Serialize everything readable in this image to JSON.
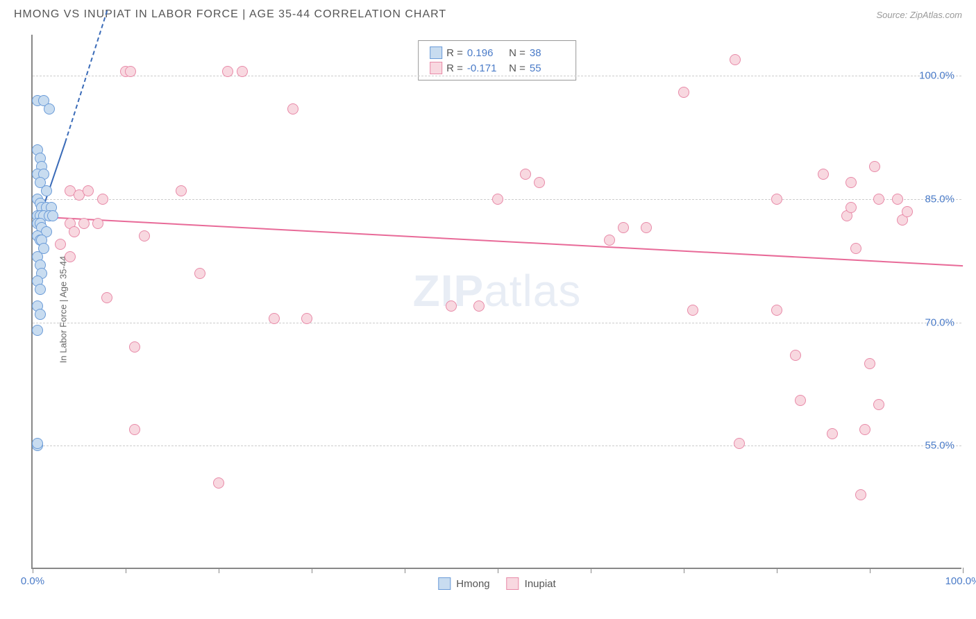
{
  "header": {
    "title": "HMONG VS INUPIAT IN LABOR FORCE | AGE 35-44 CORRELATION CHART",
    "source": "Source: ZipAtlas.com"
  },
  "chart": {
    "type": "scatter",
    "ylabel": "In Labor Force | Age 35-44",
    "xlim": [
      0,
      100
    ],
    "ylim": [
      40,
      105
    ],
    "yticks": [
      55.0,
      70.0,
      85.0,
      100.0
    ],
    "ytick_labels": [
      "55.0%",
      "70.0%",
      "85.0%",
      "100.0%"
    ],
    "xticks": [
      0,
      10,
      20,
      30,
      40,
      50,
      60,
      70,
      80,
      90,
      100
    ],
    "xtick_labels_shown": {
      "0": "0.0%",
      "100": "100.0%"
    },
    "background_color": "#ffffff",
    "grid_color": "#cccccc",
    "axis_color": "#888888",
    "watermark": "ZIPatlas",
    "series": [
      {
        "name": "Hmong",
        "color_fill": "#c8dcf0",
        "color_stroke": "#6a9bd8",
        "marker_size": 16,
        "R": "0.196",
        "N": "38",
        "trend": {
          "x1": 0.5,
          "y1": 82,
          "x2": 3.5,
          "y2": 92,
          "color": "#3a6bb8",
          "dash_extend_x2": 8,
          "dash_extend_y2": 108
        },
        "points": [
          [
            0.5,
            97
          ],
          [
            1.2,
            97
          ],
          [
            1.8,
            96
          ],
          [
            0.5,
            91
          ],
          [
            0.8,
            90
          ],
          [
            1.0,
            89
          ],
          [
            0.5,
            88
          ],
          [
            1.2,
            88
          ],
          [
            0.8,
            87
          ],
          [
            1.5,
            86
          ],
          [
            0.5,
            85
          ],
          [
            0.8,
            84.5
          ],
          [
            1.0,
            84
          ],
          [
            1.5,
            84
          ],
          [
            2.0,
            84
          ],
          [
            0.5,
            83
          ],
          [
            0.8,
            83
          ],
          [
            1.2,
            83
          ],
          [
            1.8,
            83
          ],
          [
            2.2,
            83
          ],
          [
            0.5,
            82
          ],
          [
            0.8,
            82
          ],
          [
            1.0,
            81.5
          ],
          [
            1.5,
            81
          ],
          [
            0.5,
            80.5
          ],
          [
            0.8,
            80
          ],
          [
            1.0,
            80
          ],
          [
            1.2,
            79
          ],
          [
            0.5,
            78
          ],
          [
            0.8,
            77
          ],
          [
            1.0,
            76
          ],
          [
            0.5,
            75
          ],
          [
            0.8,
            74
          ],
          [
            0.5,
            72
          ],
          [
            0.8,
            71
          ],
          [
            0.5,
            69
          ],
          [
            0.5,
            55
          ],
          [
            0.5,
            55.3
          ]
        ]
      },
      {
        "name": "Inupiat",
        "color_fill": "#f8d8e0",
        "color_stroke": "#e88aa8",
        "marker_size": 16,
        "R": "-0.171",
        "N": "55",
        "trend": {
          "x1": 0,
          "y1": 83,
          "x2": 100,
          "y2": 77,
          "color": "#e86a98"
        },
        "points": [
          [
            10,
            100.5
          ],
          [
            10.5,
            100.5
          ],
          [
            21,
            100.5
          ],
          [
            22.5,
            100.5
          ],
          [
            28,
            96
          ],
          [
            75.5,
            102
          ],
          [
            70,
            98
          ],
          [
            50,
            85
          ],
          [
            53,
            88
          ],
          [
            54.5,
            87
          ],
          [
            62,
            80
          ],
          [
            18,
            76
          ],
          [
            11,
            67
          ],
          [
            45,
            72
          ],
          [
            8,
            73
          ],
          [
            26,
            70.5
          ],
          [
            29.5,
            70.5
          ],
          [
            48,
            72
          ],
          [
            11,
            57
          ],
          [
            20,
            50.5
          ],
          [
            4,
            86
          ],
          [
            5,
            85.5
          ],
          [
            6,
            86
          ],
          [
            7.5,
            85
          ],
          [
            4,
            82
          ],
          [
            5.5,
            82
          ],
          [
            7,
            82
          ],
          [
            4.5,
            81
          ],
          [
            12,
            80.5
          ],
          [
            16,
            86
          ],
          [
            3,
            79.5
          ],
          [
            4,
            78
          ],
          [
            63.5,
            81.5
          ],
          [
            66,
            81.5
          ],
          [
            71,
            71.5
          ],
          [
            80,
            85
          ],
          [
            80,
            71.5
          ],
          [
            82,
            66
          ],
          [
            82.5,
            60.5
          ],
          [
            86,
            56.5
          ],
          [
            76,
            55.3
          ],
          [
            85,
            88
          ],
          [
            88,
            87
          ],
          [
            87.5,
            83
          ],
          [
            88,
            84
          ],
          [
            88.5,
            79
          ],
          [
            90,
            65
          ],
          [
            91,
            85
          ],
          [
            90.5,
            89
          ],
          [
            91,
            60
          ],
          [
            93,
            85
          ],
          [
            93.5,
            82.5
          ],
          [
            94,
            83.5
          ],
          [
            89.5,
            57
          ],
          [
            89,
            49
          ]
        ]
      }
    ],
    "legend": {
      "stats_box": true,
      "bottom_labels": [
        "Hmong",
        "Inupiat"
      ]
    }
  }
}
